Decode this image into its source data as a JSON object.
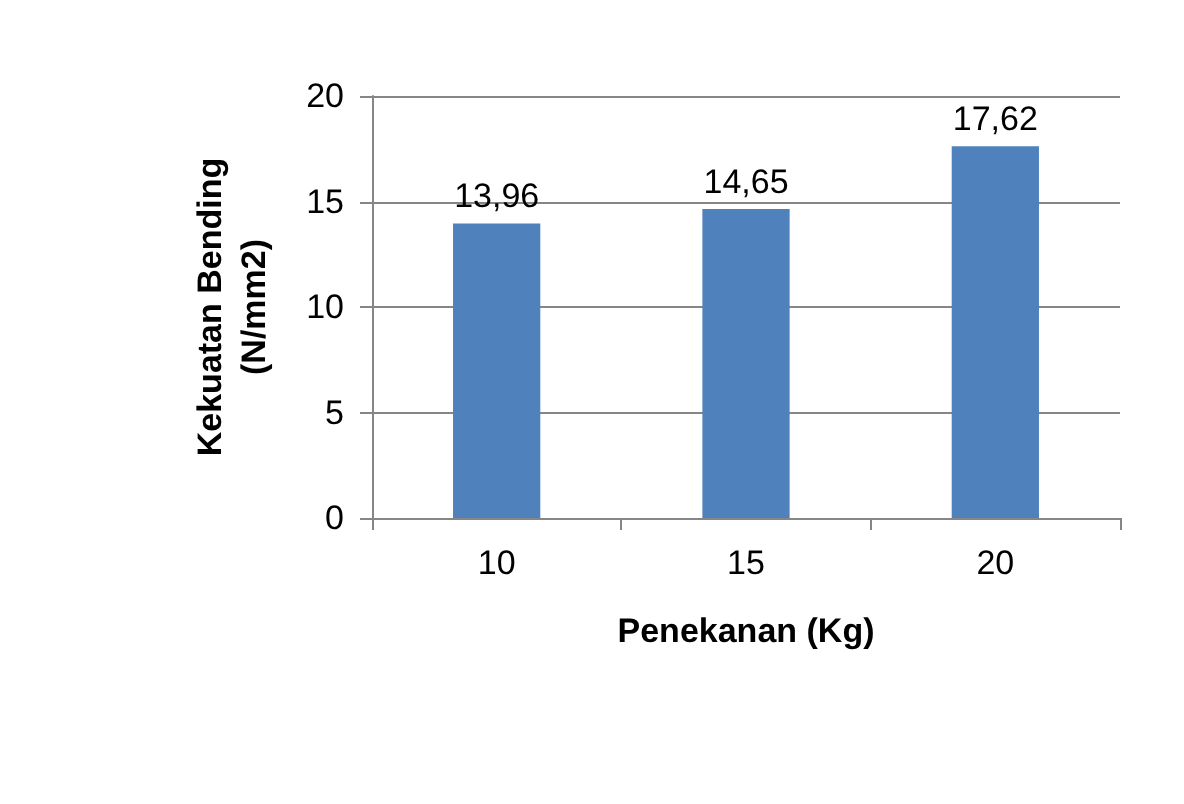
{
  "chart_data": {
    "type": "bar",
    "xlabel": "Penekanan (Kg)",
    "ylabel": "Kekuatan Bending (N/mm2)",
    "categories": [
      "10",
      "15",
      "20"
    ],
    "values": [
      13.96,
      14.65,
      17.62
    ],
    "value_labels": [
      "13,96",
      "14,65",
      "17,62"
    ],
    "color": "#4f81bd",
    "ylim": [
      0,
      20
    ],
    "yticks": [
      0,
      5,
      10,
      15,
      20
    ],
    "grid": "y"
  }
}
